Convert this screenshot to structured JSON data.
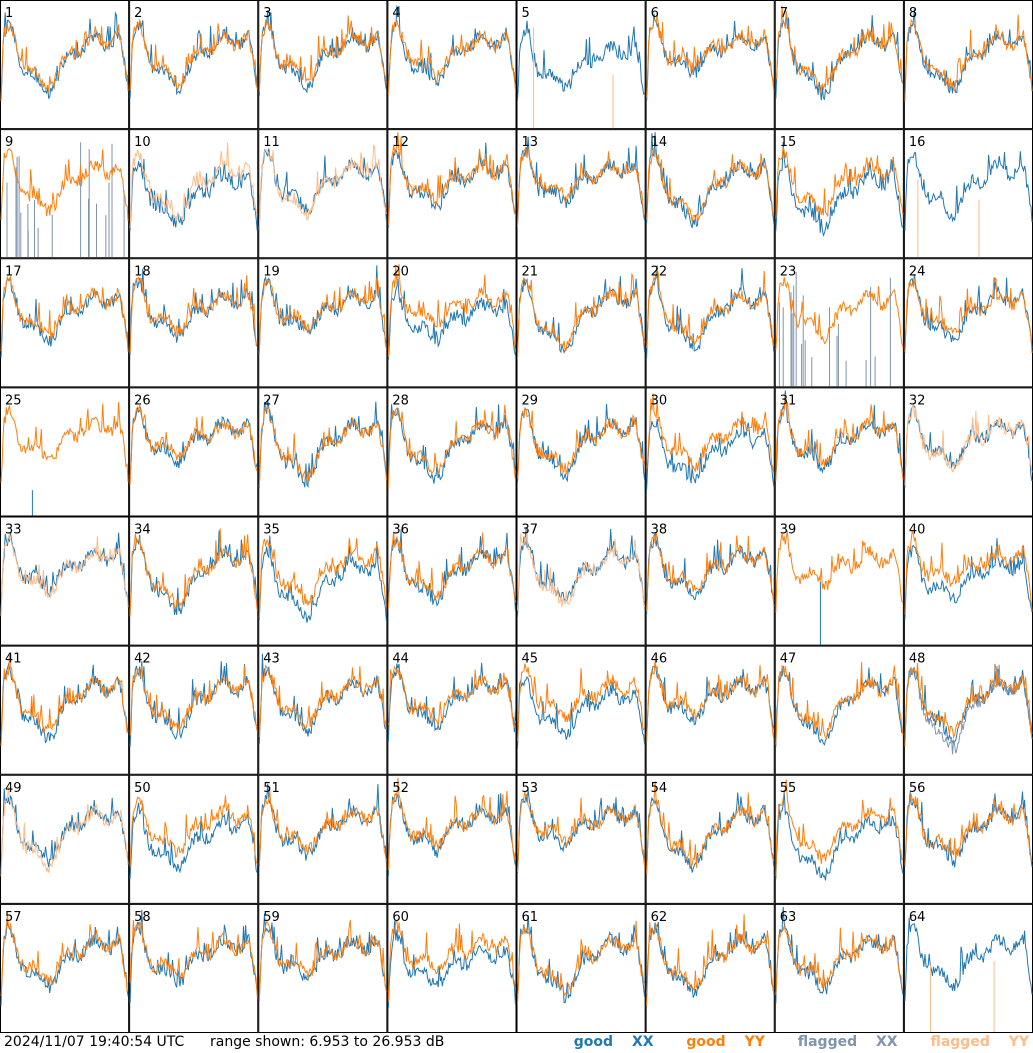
{
  "footer": {
    "timestamp": "2024/11/07 19:40:54 UTC",
    "range_text": "range shown: 6.953 to 26.953 dB"
  },
  "legend": [
    {
      "word": "good",
      "pol": "XX",
      "color": "#1f77b4"
    },
    {
      "word": "good",
      "pol": "YY",
      "color": "#ff7f0e"
    },
    {
      "word": "flagged",
      "pol": "XX",
      "color": "#7f95ad"
    },
    {
      "word": "flagged",
      "pol": "YY",
      "color": "#ffbb88"
    }
  ],
  "colors": {
    "good_xx": "#1f77b4",
    "good_yy": "#ff7f0e",
    "flagged_xx": "#7f95ad",
    "flagged_yy": "#ffbb88",
    "grid": "#000000"
  },
  "chart_data": {
    "type": "line",
    "layout": "small-multiples 8x8",
    "range_db": [
      6.953,
      26.953
    ],
    "tile_count": 64,
    "tile_labels": [
      "1",
      "2",
      "3",
      "4",
      "5",
      "6",
      "7",
      "8",
      "9",
      "10",
      "11",
      "12",
      "13",
      "14",
      "15",
      "16",
      "17",
      "18",
      "19",
      "20",
      "21",
      "22",
      "23",
      "24",
      "25",
      "26",
      "27",
      "28",
      "29",
      "30",
      "31",
      "32",
      "33",
      "34",
      "35",
      "36",
      "37",
      "38",
      "39",
      "40",
      "41",
      "42",
      "43",
      "44",
      "45",
      "46",
      "47",
      "48",
      "49",
      "50",
      "51",
      "52",
      "53",
      "54",
      "55",
      "56",
      "57",
      "58",
      "59",
      "60",
      "61",
      "62",
      "63",
      "64"
    ],
    "series": [
      {
        "name": "good XX"
      },
      {
        "name": "good YY"
      },
      {
        "name": "flagged XX"
      },
      {
        "name": "flagged YY"
      }
    ],
    "tile_status": {
      "xx_flagged": [
        9,
        23
      ],
      "yy_flagged": [
        10,
        11,
        32,
        33,
        37,
        49
      ],
      "yy_spikes_only": [
        5,
        16,
        64
      ],
      "xx_spikes_only": [
        25,
        39
      ],
      "xx_flagged_overlay": [
        48
      ]
    }
  }
}
